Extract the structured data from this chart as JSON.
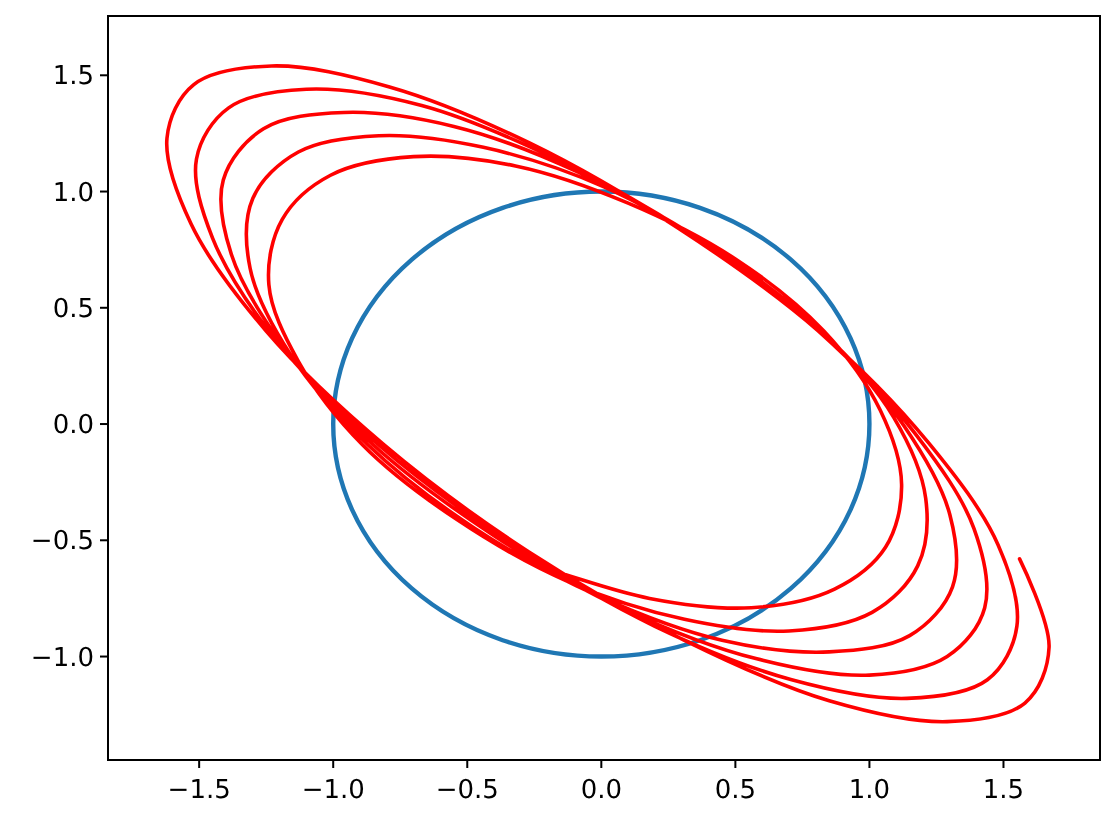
{
  "chart_data": {
    "type": "line",
    "xlim": [
      -1.84,
      1.86
    ],
    "ylim": [
      -1.445,
      1.755
    ],
    "xticks": [
      {
        "value": -1.5,
        "label": "−1.5"
      },
      {
        "value": -1,
        "label": "−1.0"
      },
      {
        "value": -0.5,
        "label": "−0.5"
      },
      {
        "value": 0,
        "label": "0.0"
      },
      {
        "value": 0.5,
        "label": "0.5"
      },
      {
        "value": 1,
        "label": "1.0"
      },
      {
        "value": 1.5,
        "label": "1.5"
      }
    ],
    "yticks": [
      {
        "value": -1,
        "label": "−1.0"
      },
      {
        "value": -0.5,
        "label": "−0.5"
      },
      {
        "value": 0,
        "label": "0.0"
      },
      {
        "value": 0.5,
        "label": "0.5"
      },
      {
        "value": 1,
        "label": "1.0"
      },
      {
        "value": 1.5,
        "label": "1.5"
      }
    ],
    "series": [
      {
        "color": "#ff0000",
        "x": [
          -0.23,
          0.18,
          0.56,
          0.87,
          1.06,
          1.12,
          1.04,
          0.83,
          0.5,
          0.1,
          -0.32,
          -0.7,
          -1.01,
          -1.19,
          -1.24,
          -1.13,
          -0.89,
          -0.54,
          -0.12,
          0.31,
          0.7,
          1.01,
          1.18,
          1.21,
          1.09,
          0.82,
          0.44,
          0.01,
          -0.44,
          -0.83,
          -1.13,
          -1.3,
          -1.31,
          -1.16,
          -0.87,
          -0.47,
          -0.01,
          0.45,
          0.85,
          1.15,
          1.31,
          1.3,
          1.13,
          0.82,
          0.39,
          -0.08,
          -0.55,
          -0.96,
          -1.26,
          -1.41,
          -1.38,
          -1.19,
          -0.85,
          -0.4,
          0.09,
          0.58,
          1.0,
          1.29,
          1.43,
          1.39,
          1.17,
          0.81,
          0.34,
          -0.17,
          -0.67,
          -1.1,
          -1.39,
          -1.51,
          -1.45,
          -1.22,
          -0.83,
          -0.34,
          0.2,
          0.71,
          1.14,
          1.44,
          1.55,
          1.48,
          1.22,
          0.81,
          0.29,
          -0.27,
          -0.79,
          -1.23,
          -1.52,
          -1.62,
          -1.53,
          -1.25,
          -0.81,
          -0.27,
          0.31,
          0.85,
          1.29,
          1.58,
          1.67,
          1.56
        ],
        "values": [
          -0.61,
          -0.75,
          -0.79,
          -0.71,
          -0.53,
          -0.26,
          0.06,
          0.4,
          0.71,
          0.95,
          1.11,
          1.15,
          1.07,
          0.88,
          0.6,
          0.27,
          -0.09,
          -0.41,
          -0.68,
          -0.84,
          -0.89,
          -0.81,
          -0.61,
          -0.32,
          0.03,
          0.4,
          0.74,
          1.02,
          1.19,
          1.24,
          1.17,
          0.97,
          0.67,
          0.3,
          -0.09,
          -0.45,
          -0.74,
          -0.93,
          -0.98,
          -0.91,
          -0.7,
          -0.39,
          -0.01,
          0.4,
          0.77,
          1.08,
          1.28,
          1.34,
          1.27,
          1.05,
          0.73,
          0.34,
          -0.09,
          -0.48,
          -0.8,
          -1.01,
          -1.08,
          -1.0,
          -0.79,
          -0.45,
          -0.04,
          0.4,
          0.81,
          1.14,
          1.37,
          1.44,
          1.36,
          1.14,
          0.8,
          0.37,
          -0.09,
          -0.51,
          -0.87,
          -1.1,
          -1.18,
          -1.1,
          -0.87,
          -0.52,
          -0.08,
          0.4,
          0.84,
          1.21,
          1.45,
          1.54,
          1.46,
          1.23,
          0.86,
          0.4,
          -0.09,
          -0.55,
          -0.93,
          -1.19,
          -1.28,
          -1.2,
          -0.96,
          -0.58
        ]
      }
    ]
  }
}
